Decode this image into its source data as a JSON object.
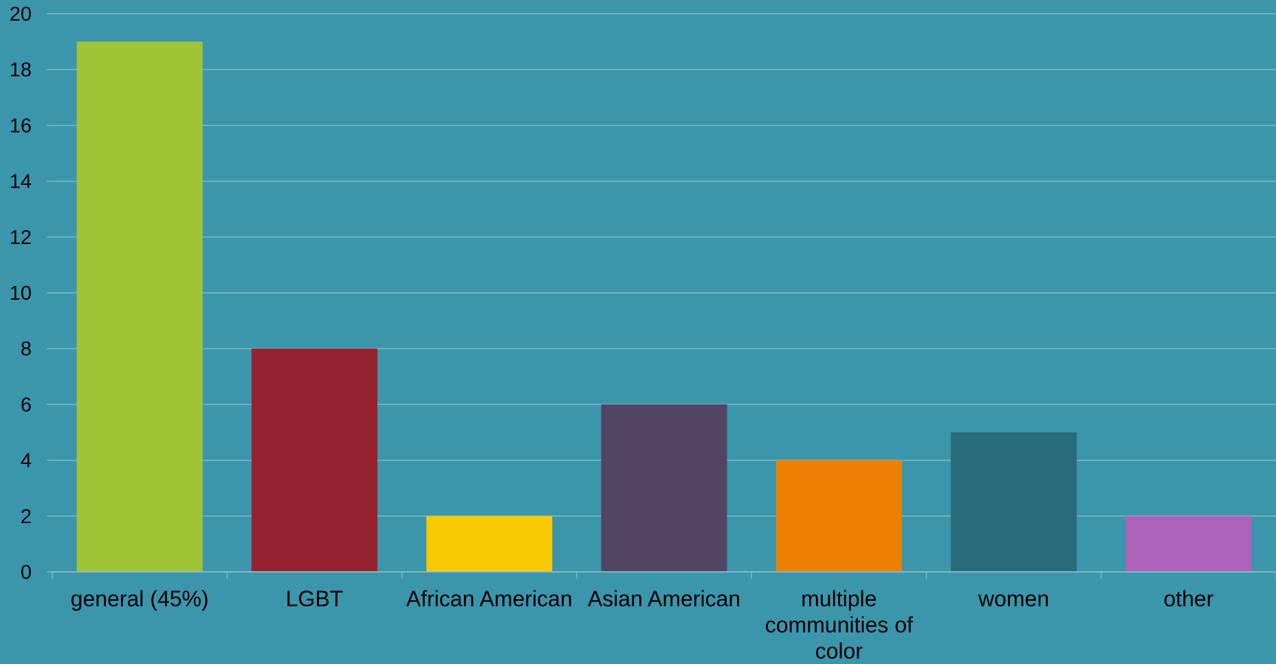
{
  "chart_data": {
    "type": "bar",
    "title": "",
    "xlabel": "",
    "ylabel": "",
    "ylim": [
      0,
      20
    ],
    "yticks": [
      0,
      2,
      4,
      6,
      8,
      10,
      12,
      14,
      16,
      18,
      20
    ],
    "ytick_labels": [
      "0",
      "2",
      "4",
      "6",
      "8",
      "10",
      "12",
      "14",
      "16",
      "18",
      "20"
    ],
    "grid": true,
    "legend": "none",
    "categories": [
      "general (45%)",
      "LGBT",
      "African American",
      "Asian American",
      "multiple communities of color",
      "women",
      "other"
    ],
    "values": [
      19,
      8,
      2,
      6,
      4,
      5,
      2
    ],
    "colors": [
      "#a0c437",
      "#96222f",
      "#f7c900",
      "#514464",
      "#ec8005",
      "#286b79",
      "#ad62b9"
    ]
  },
  "style": {
    "background": "#3b96ac",
    "gridline_color": "#86b8c4",
    "axis_color": "#86b8c4"
  }
}
